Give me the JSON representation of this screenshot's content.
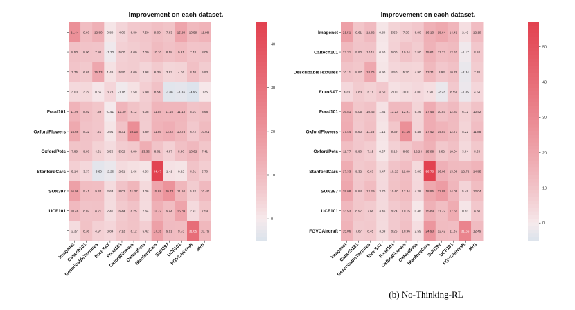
{
  "caption_b": "(b) No-Thinking-RL",
  "colors": {
    "low": "#dbe3ec",
    "mid": "#f6eaec",
    "high": "#e2414f"
  },
  "chart_data": [
    {
      "type": "heatmap",
      "title": "Improvement on each dataset.",
      "rows": [
        "",
        "",
        "",
        "",
        "Food101",
        "OxfordFlowers",
        "OxfordPets",
        "StanfordCars",
        "SUN397",
        "UCF101",
        ""
      ],
      "columns": [
        "Imagenet",
        "Caltech101",
        "DescribableTextures",
        "EuroSAT",
        "Food101",
        "OxfordFlowers",
        "OxfordPets",
        "StanfordCars",
        "SUN397",
        "UCF101",
        "FGVCAircraft",
        "AVG"
      ],
      "values": [
        [
          21.44,
          9.6,
          12.8,
          0.8,
          4.0,
          6.8,
          7.5,
          9.0,
          7.83,
          15.8,
          10.59,
          11.98
        ],
        [
          8.5,
          8.0,
          7.8,
          -1.3,
          5.0,
          6.0,
          7.0,
          10.1,
          8.58,
          9.81,
          7.74,
          8.05
        ],
        [
          7.75,
          6.65,
          15.13,
          1.46,
          5.5,
          6.0,
          3.98,
          6.39,
          3.93,
          4.36,
          8.7,
          5.93
        ],
        [
          3.0,
          3.29,
          0.65,
          3.78,
          -1.05,
          1.5,
          5.4,
          8.54,
          -3.88,
          -3.33,
          -4.65,
          0.35
        ],
        [
          11.98,
          8.92,
          7.39,
          -0.41,
          11.39,
          8.12,
          6.08,
          11.54,
          11.15,
          11.13,
          8.01,
          8.68
        ],
        [
          14.66,
          8.32,
          7.21,
          0.91,
          8.31,
          22.13,
          5.89,
          11.95,
          13.22,
          10.78,
          6.72,
          10.01
        ],
        [
          7.89,
          8.03,
          4.61,
          2.56,
          5.92,
          6.9,
          13.36,
          8.01,
          4.87,
          8.8,
          10.62,
          7.41
        ],
        [
          5.14,
          3.37,
          -3.6,
          -2.26,
          2.61,
          1.66,
          0.93,
          44.47,
          1.41,
          0.92,
          8.01,
          5.7
        ],
        [
          16.98,
          9.41,
          9.34,
          2.63,
          8.02,
          11.37,
          3.06,
          15.88,
          20.73,
          11.1,
          5.82,
          10.4
        ],
        [
          10.46,
          8.07,
          8.21,
          2.41,
          6.44,
          8.25,
          2.64,
          12.72,
          9.44,
          15.89,
          2.91,
          7.59
        ],
        [
          2.37,
          8.36,
          4.97,
          3.84,
          7.13,
          8.12,
          5.42,
          17.16,
          9.91,
          9.73,
          31.65,
          10.79
        ]
      ],
      "colorbar": {
        "min": -5,
        "max": 45,
        "ticks": [
          0,
          10,
          20,
          30,
          40
        ]
      }
    },
    {
      "type": "heatmap",
      "title": "Improvement on each dataset.",
      "rows": [
        "Imagenet",
        "Caltech101",
        "DescribableTextures",
        "EuroSAT",
        "Food101",
        "OxfordFlowers",
        "OxfordPets",
        "StanfordCars",
        "SUN397",
        "UCF101",
        "FGVCAircraft"
      ],
      "columns": [
        "Imagenet",
        "Caltech101",
        "DescribableTextures",
        "EuroSAT",
        "Food101",
        "OxfordFlowers",
        "OxfordPets",
        "StanfordCars",
        "SUN397",
        "UCF101",
        "FGVCAircraft",
        "AVG"
      ],
      "values": [
        [
          21.51,
          9.61,
          12.82,
          0.89,
          5.5,
          7.2,
          8.9,
          16.13,
          18.64,
          14.41,
          2.49,
          12.19
        ],
        [
          13.31,
          9.9,
          10.11,
          0.5,
          6.0,
          10.24,
          7.5,
          15.61,
          11.73,
          12.61,
          -1.17,
          8.84
        ],
        [
          10.11,
          8.97,
          18.76,
          0.9,
          4.5,
          5.2,
          4.9,
          13.31,
          8.93,
          10.76,
          -2.34,
          7.38
        ],
        [
          4.23,
          7.83,
          6.11,
          8.5,
          2.0,
          3.0,
          4.0,
          2.5,
          -2.23,
          8.59,
          -1.85,
          4.54
        ],
        [
          16.51,
          9.05,
          10.46,
          1.84,
          13.23,
          12.91,
          5.26,
          17.46,
          10.87,
          12.87,
          6.12,
          10.42
        ],
        [
          17.44,
          8.6,
          11.23,
          1.14,
          9.39,
          27.16,
          5.48,
          17.42,
          14.87,
          12.77,
          5.22,
          11.88
        ],
        [
          11.77,
          8.8,
          7.15,
          0.67,
          6.19,
          8.69,
          12.24,
          15.98,
          8.62,
          10.94,
          3.84,
          8.63
        ],
        [
          17.33,
          8.32,
          9.63,
          3.47,
          10.22,
          11.9,
          3.9,
          56.73,
          16.06,
          13.06,
          12.72,
          14.85
        ],
        [
          19.08,
          8.84,
          12.29,
          3.7,
          10.6,
          12.34,
          4.28,
          18.95,
          22.89,
          14.09,
          5.49,
          12.04
        ],
        [
          13.53,
          8.97,
          7.68,
          3.46,
          8.24,
          10.15,
          0.46,
          15.89,
          11.72,
          17.61,
          0.93,
          8.88
        ],
        [
          15.06,
          7.87,
          8.45,
          3.39,
          8.25,
          10.96,
          2.59,
          24.9,
          12.42,
          11.87,
          31.65,
          12.49
        ]
      ],
      "colorbar": {
        "min": -5,
        "max": 57,
        "ticks": [
          0,
          10,
          20,
          30,
          40,
          50
        ]
      }
    }
  ]
}
